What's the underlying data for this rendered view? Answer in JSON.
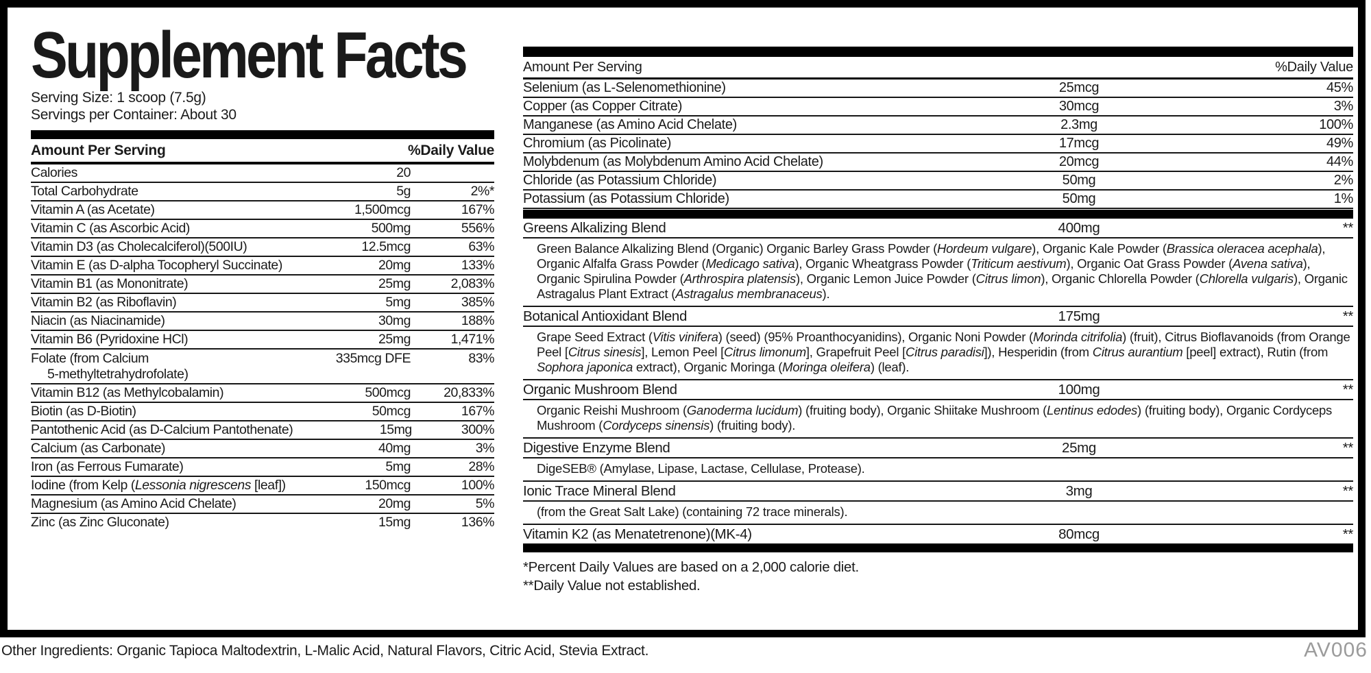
{
  "title": "Supplement Facts",
  "serving": {
    "size": "Serving Size: 1 scoop (7.5g)",
    "per_container": "Servings per Container: About 30"
  },
  "left_table": {
    "header": {
      "amount": "Amount Per Serving",
      "dv": "%Daily Value"
    },
    "rows": [
      {
        "name": "Calories",
        "amount": "20",
        "dv": ""
      },
      {
        "name": "Total Carbohydrate",
        "amount": "5g",
        "dv": "2%*"
      },
      {
        "name": "Vitamin A (as Acetate)",
        "amount": "1,500mcg",
        "dv": "167%"
      },
      {
        "name": "Vitamin C (as Ascorbic Acid)",
        "amount": "500mg",
        "dv": "556%"
      },
      {
        "name": "Vitamin D3 (as Cholecalciferol)(500IU)",
        "amount": "12.5mcg",
        "dv": "63%"
      },
      {
        "name": "Vitamin E (as D-alpha Tocopheryl Succinate)",
        "amount": "20mg",
        "dv": "133%"
      },
      {
        "name": "Vitamin B1 (as Mononitrate)",
        "amount": "25mg",
        "dv": "2,083%"
      },
      {
        "name": "Vitamin B2 (as Riboflavin)",
        "amount": "5mg",
        "dv": "385%"
      },
      {
        "name": "Niacin (as Niacinamide)",
        "amount": "30mg",
        "dv": "188%"
      },
      {
        "name": "Vitamin B6 (Pyridoxine HCl)",
        "amount": "25mg",
        "dv": "1,471%"
      },
      {
        "name": "Folate (from Calcium",
        "name2": "5-methyltetrahydrofolate)",
        "amount": "335mcg DFE",
        "dv": "83%"
      },
      {
        "name": "Vitamin B12 (as Methylcobalamin)",
        "amount": "500mcg",
        "dv": "20,833%"
      },
      {
        "name": "Biotin (as D-Biotin)",
        "amount": "50mcg",
        "dv": "167%"
      },
      {
        "name": "Pantothenic Acid (as D-Calcium Pantothenate)",
        "amount": "15mg",
        "dv": "300%"
      },
      {
        "name": "Calcium (as Carbonate)",
        "amount": "40mg",
        "dv": "3%"
      },
      {
        "name": "Iron (as Ferrous Fumarate)",
        "amount": "5mg",
        "dv": "28%"
      },
      {
        "name": [
          {
            "t": "Iodine (from Kelp ("
          },
          {
            "t": "Lessonia nigrescens",
            "i": true
          },
          {
            "t": " [leaf])"
          }
        ],
        "amount": "150mcg",
        "dv": "100%"
      },
      {
        "name": "Magnesium (as Amino Acid Chelate)",
        "amount": "20mg",
        "dv": "5%"
      },
      {
        "name": "Zinc (as Zinc Gluconate)",
        "amount": "15mg",
        "dv": "136%"
      }
    ]
  },
  "right_table": {
    "header": {
      "amount": "Amount Per Serving",
      "dv": "%Daily Value"
    },
    "rows": [
      {
        "name": "Selenium (as L-Selenomethionine)",
        "amount": "25mcg",
        "dv": "45%"
      },
      {
        "name": "Copper (as Copper Citrate)",
        "amount": "30mcg",
        "dv": "3%"
      },
      {
        "name": "Manganese (as Amino Acid Chelate)",
        "amount": "2.3mg",
        "dv": "100%"
      },
      {
        "name": "Chromium (as Picolinate)",
        "amount": "17mcg",
        "dv": "49%"
      },
      {
        "name": "Molybdenum (as Molybdenum Amino Acid Chelate)",
        "amount": "20mcg",
        "dv": "44%"
      },
      {
        "name": "Chloride (as Potassium Chloride)",
        "amount": "50mg",
        "dv": "2%"
      },
      {
        "name": "Potassium (as Potassium Chloride)",
        "amount": "50mg",
        "dv": "1%"
      }
    ],
    "blends": [
      {
        "name": "Greens Alkalizing Blend",
        "amount": "400mg",
        "dv": "**",
        "desc": [
          {
            "t": "Green Balance Alkalizing Blend (Organic) Organic Barley Grass Powder ("
          },
          {
            "t": "Hordeum vulgare",
            "i": true
          },
          {
            "t": "), Organic Kale Powder ("
          },
          {
            "t": "Brassica oleracea acephala",
            "i": true
          },
          {
            "t": "), Organic Alfalfa Grass Powder ("
          },
          {
            "t": "Medicago sativa",
            "i": true
          },
          {
            "t": "), Organic Wheatgrass Powder ("
          },
          {
            "t": "Triticum aestivum",
            "i": true
          },
          {
            "t": "), Organic Oat Grass Powder ("
          },
          {
            "t": "Avena sativa",
            "i": true
          },
          {
            "t": "), Organic Spirulina Powder ("
          },
          {
            "t": "Arthrospira platensis",
            "i": true
          },
          {
            "t": "), Organic Lemon Juice Powder ("
          },
          {
            "t": "Citrus limon",
            "i": true
          },
          {
            "t": "), Organic Chlorella Powder ("
          },
          {
            "t": "Chlorella vulgaris",
            "i": true
          },
          {
            "t": "), Organic Astragalus Plant Extract ("
          },
          {
            "t": "Astragalus membranaceus",
            "i": true
          },
          {
            "t": ")."
          }
        ]
      },
      {
        "name": "Botanical Antioxidant Blend",
        "amount": "175mg",
        "dv": "**",
        "desc": [
          {
            "t": "Grape Seed Extract ("
          },
          {
            "t": "Vitis vinifera",
            "i": true
          },
          {
            "t": ") (seed) (95% Proanthocyanidins), Organic Noni Powder ("
          },
          {
            "t": "Morinda citrifolia",
            "i": true
          },
          {
            "t": ") (fruit), Citrus Bioflavanoids (from Orange Peel ["
          },
          {
            "t": "Citrus sinesis",
            "i": true
          },
          {
            "t": "], Lemon Peel ["
          },
          {
            "t": "Citrus limonum",
            "i": true
          },
          {
            "t": "], Grapefruit Peel ["
          },
          {
            "t": "Citrus paradisi",
            "i": true
          },
          {
            "t": "]), Hesperidin (from "
          },
          {
            "t": "Citrus aurantium",
            "i": true
          },
          {
            "t": " [peel] extract), Rutin (from "
          },
          {
            "t": "Sophora japonica",
            "i": true
          },
          {
            "t": " extract), Organic Moringa ("
          },
          {
            "t": "Moringa oleifera",
            "i": true
          },
          {
            "t": ") (leaf)."
          }
        ]
      },
      {
        "name": "Organic Mushroom Blend",
        "amount": "100mg",
        "dv": "**",
        "desc": [
          {
            "t": "Organic Reishi Mushroom ("
          },
          {
            "t": "Ganoderma lucidum",
            "i": true
          },
          {
            "t": ") (fruiting body), Organic Shiitake Mushroom ("
          },
          {
            "t": "Lentinus edodes",
            "i": true
          },
          {
            "t": ") (fruiting body), Organic Cordyceps Mushroom ("
          },
          {
            "t": "Cordyceps sinensis",
            "i": true
          },
          {
            "t": ") (fruiting body)."
          }
        ]
      },
      {
        "name": "Digestive Enzyme Blend",
        "amount": "25mg",
        "dv": "**",
        "desc": [
          {
            "t": "DigeSEB® (Amylase, Lipase, Lactase, Cellulase, Protease)."
          }
        ]
      },
      {
        "name": "Ionic Trace Mineral Blend",
        "amount": "3mg",
        "dv": "**",
        "desc": [
          {
            "t": "(from the Great Salt Lake) (containing 72 trace minerals)."
          }
        ]
      },
      {
        "name": "Vitamin K2 (as Menatetrenone)(MK-4)",
        "amount": "80mcg",
        "dv": "**"
      }
    ]
  },
  "footnotes": [
    "*Percent Daily Values are based on a 2,000 calorie diet.",
    "**Daily Value not established."
  ],
  "other_ingredients": "Other Ingredients: Organic Tapioca Maltodextrin, L-Malic Acid, Natural Flavors, Citric Acid, Stevia Extract.",
  "code": "AV006",
  "colors": {
    "ink": "#1a1a1a",
    "bar": "#000000",
    "code_gray": "#9b9b9b"
  }
}
